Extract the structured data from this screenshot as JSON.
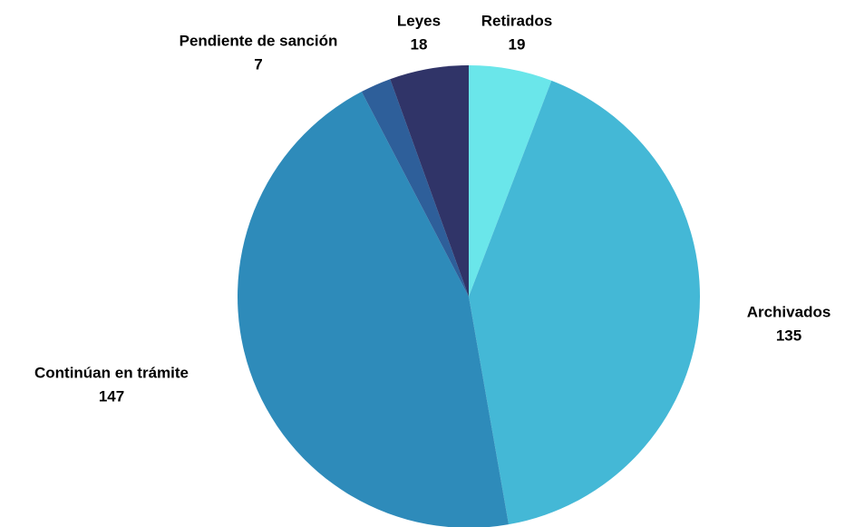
{
  "chart_data": {
    "type": "pie",
    "categories": [
      "Retirados",
      "Archivados",
      "Continúan en trámite",
      "Pendiente de sanción",
      "Leyes"
    ],
    "values": [
      19,
      135,
      147,
      7,
      18
    ],
    "colors": [
      "#6ae6ea",
      "#44b8d6",
      "#2e8bba",
      "#2e5f9a",
      "#303468"
    ]
  }
}
